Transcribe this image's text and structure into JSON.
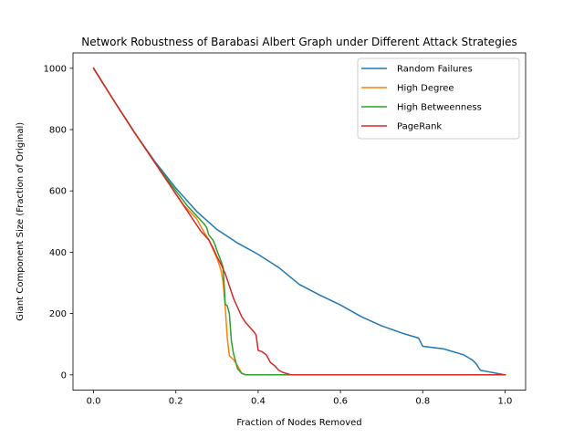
{
  "chart_data": {
    "type": "line",
    "title": "Network Robustness of Barabasi Albert Graph under Different Attack Strategies",
    "xlabel": "Fraction of Nodes Removed",
    "ylabel": "Giant Component Size (Fraction of Original)",
    "xlim": [
      -0.05,
      1.05
    ],
    "ylim": [
      -50,
      1050
    ],
    "xticks": [
      0.0,
      0.2,
      0.4,
      0.6,
      0.8,
      1.0
    ],
    "xtick_labels": [
      "0.0",
      "0.2",
      "0.4",
      "0.6",
      "0.8",
      "1.0"
    ],
    "yticks": [
      0,
      200,
      400,
      600,
      800,
      1000
    ],
    "ytick_labels": [
      "0",
      "200",
      "400",
      "600",
      "800",
      "1000"
    ],
    "grid": false,
    "legend_position": "top-right",
    "series": [
      {
        "name": "Random Failures",
        "color": "#1f77b4",
        "x": [
          0.0,
          0.05,
          0.1,
          0.15,
          0.2,
          0.25,
          0.3,
          0.35,
          0.4,
          0.45,
          0.5,
          0.55,
          0.6,
          0.65,
          0.7,
          0.75,
          0.79,
          0.8,
          0.85,
          0.9,
          0.92,
          0.93,
          0.94,
          0.96,
          0.98,
          1.0
        ],
        "y": [
          1000,
          893,
          789,
          694,
          609,
          534,
          474,
          430,
          393,
          350,
          295,
          260,
          228,
          190,
          160,
          136,
          120,
          93,
          85,
          65,
          49,
          36,
          15,
          10,
          5,
          0
        ]
      },
      {
        "name": "High Degree",
        "color": "#ff7f0e",
        "x": [
          0.0,
          0.05,
          0.1,
          0.15,
          0.2,
          0.22,
          0.25,
          0.27,
          0.28,
          0.29,
          0.3,
          0.31,
          0.315,
          0.32,
          0.325,
          0.33,
          0.34,
          0.35,
          0.36,
          0.37,
          0.4,
          0.5,
          0.6,
          0.8,
          1.0
        ],
        "y": [
          1000,
          893,
          790,
          690,
          590,
          552,
          510,
          462,
          441,
          410,
          380,
          340,
          300,
          220,
          120,
          62,
          50,
          30,
          5,
          0,
          0,
          0,
          0,
          0,
          0
        ]
      },
      {
        "name": "High Betweenness",
        "color": "#2ca02c",
        "x": [
          0.0,
          0.05,
          0.1,
          0.15,
          0.2,
          0.23,
          0.26,
          0.27,
          0.275,
          0.28,
          0.29,
          0.295,
          0.3,
          0.31,
          0.315,
          0.32,
          0.325,
          0.33,
          0.335,
          0.34,
          0.35,
          0.36,
          0.37,
          0.4,
          0.5,
          0.6,
          0.8,
          1.0
        ],
        "y": [
          1000,
          893,
          790,
          690,
          600,
          548,
          505,
          490,
          480,
          456,
          440,
          425,
          405,
          370,
          350,
          230,
          225,
          200,
          110,
          70,
          20,
          5,
          0,
          0,
          0,
          0,
          0,
          0
        ]
      },
      {
        "name": "PageRank",
        "color": "#d62728",
        "x": [
          0.0,
          0.05,
          0.1,
          0.15,
          0.2,
          0.23,
          0.26,
          0.28,
          0.29,
          0.3,
          0.31,
          0.32,
          0.33,
          0.34,
          0.35,
          0.36,
          0.37,
          0.38,
          0.39,
          0.395,
          0.4,
          0.41,
          0.42,
          0.43,
          0.44,
          0.45,
          0.46,
          0.48,
          0.6,
          0.8,
          1.0
        ],
        "y": [
          1000,
          893,
          789,
          690,
          590,
          530,
          470,
          440,
          415,
          385,
          360,
          330,
          290,
          250,
          220,
          190,
          170,
          155,
          140,
          130,
          80,
          75,
          65,
          40,
          30,
          15,
          8,
          0,
          0,
          0,
          0
        ]
      }
    ]
  }
}
